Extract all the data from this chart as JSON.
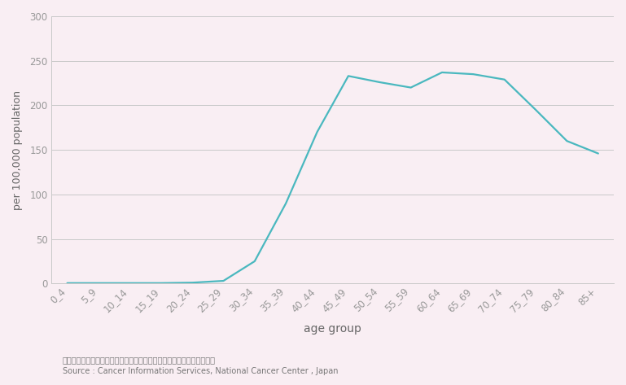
{
  "age_groups": [
    "0_4",
    "5_9",
    "10_14",
    "15_19",
    "20_24",
    "25_29",
    "30_34",
    "35_39",
    "40_44",
    "45_49",
    "50_54",
    "55_59",
    "60_64",
    "65_69",
    "70_74",
    "75_79",
    "80_84",
    "85+"
  ],
  "values": [
    0.5,
    0.5,
    0.5,
    0.5,
    1.0,
    3.0,
    25.0,
    90.0,
    170.0,
    233.0,
    226.0,
    220.0,
    237.0,
    235.0,
    229.0,
    195.0,
    160.0,
    146.0
  ],
  "line_color": "#4ab8bf",
  "line_width": 1.6,
  "bg_color": "#f9eef3",
  "plot_area_bg": "#f9eef3",
  "ylabel": "per 100,000 population",
  "xlabel": "age group",
  "ylim": [
    0,
    300
  ],
  "yticks": [
    0,
    50,
    100,
    150,
    200,
    250,
    300
  ],
  "grid_color": "#c8c8c8",
  "tick_label_color": "#999999",
  "axis_label_color": "#666666",
  "source_line1": "資料：国立がん研究センターがん対策情報センター「がん登録・統計」",
  "source_line2": "Source : Cancer Information Services, National Cancer Center , Japan",
  "source_fontsize": 7.0,
  "axis_label_fontsize": 10,
  "tick_label_fontsize": 8.5,
  "ylabel_fontsize": 9
}
